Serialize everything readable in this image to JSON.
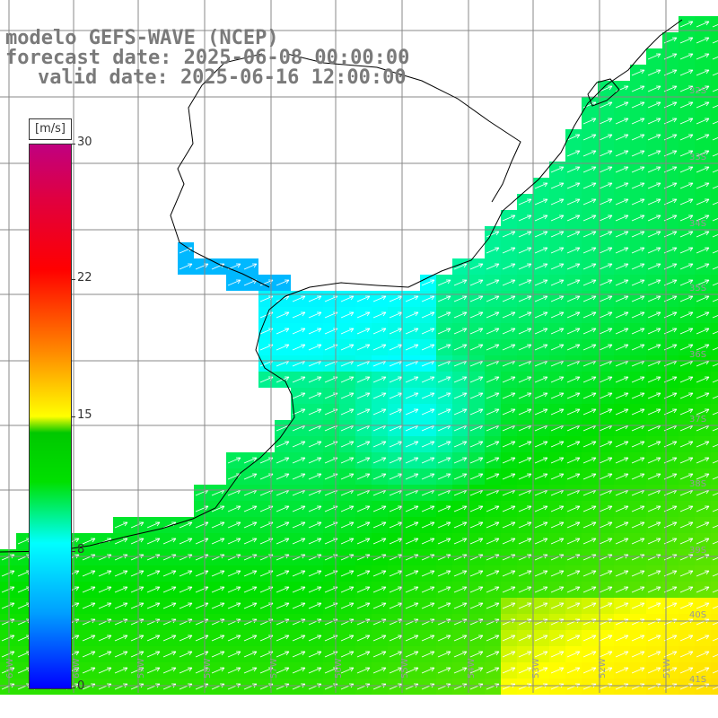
{
  "title": {
    "model": "modelo GEFS-WAVE (NCEP)",
    "forecast": "forecast date: 2025-06-08 00:00:00",
    "valid": "valid date: 2025-06-16 12:00:00"
  },
  "colorbar": {
    "units": "[m/s]",
    "labels": [
      "30",
      "22",
      "15",
      "8",
      "0"
    ],
    "values": [
      30,
      22,
      15,
      8,
      0
    ],
    "min": 0,
    "max": 30,
    "colors": [
      "#0000ff",
      "#00a0ff",
      "#00ffff",
      "#00e000",
      "#ffff00",
      "#ff8800",
      "#ff0000",
      "#c00080"
    ]
  },
  "map": {
    "land_color": "#ffffff",
    "coast_color": "#000000",
    "grid_color": "#888888",
    "arrow_color": "#ffffff",
    "lat_labels": [
      "32S",
      "33S",
      "34S",
      "35S",
      "36S",
      "37S",
      "38S",
      "39S",
      "40S",
      "41S"
    ],
    "lon_labels": [
      "61W",
      "60W",
      "59W",
      "58W",
      "57W",
      "56W",
      "55W",
      "54W",
      "53W",
      "52W",
      "51W"
    ],
    "wind_direction": "northeast"
  }
}
